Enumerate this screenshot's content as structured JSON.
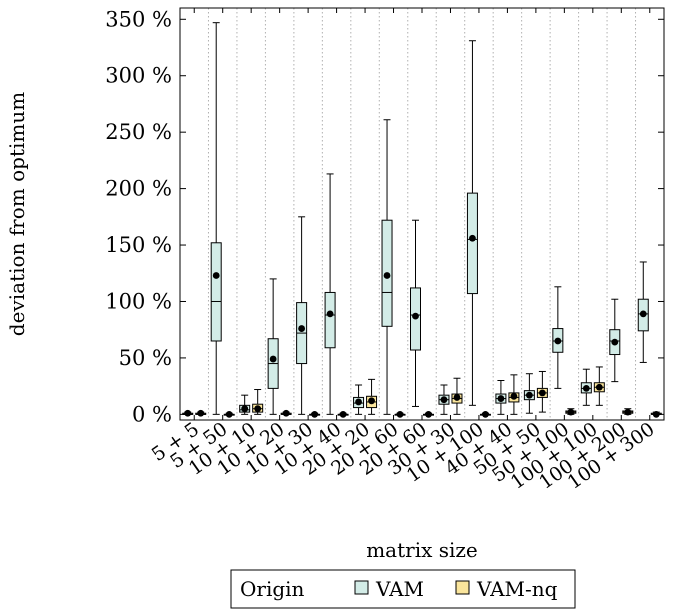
{
  "chart_data": {
    "type": "box",
    "title": "",
    "xlabel": "matrix size",
    "ylabel": "deviation from optimum",
    "ylim": [
      -5,
      360
    ],
    "yticks": [
      0,
      50,
      100,
      150,
      200,
      250,
      300,
      350
    ],
    "ytick_labels": [
      "0 %",
      "50 %",
      "100 %",
      "150 %",
      "200 %",
      "250 %",
      "300 %",
      "350 %"
    ],
    "grid": "vertical dotted between categories",
    "categories": [
      "5 + 5",
      "5 + 50",
      "10 + 10",
      "10 + 20",
      "10 + 30",
      "10 + 40",
      "20 + 20",
      "20 + 60",
      "20 + 60",
      "30 + 30",
      "10 + 100",
      "40 + 40",
      "50 + 50",
      "50 + 100",
      "100 + 100",
      "100 + 200",
      "100 + 300"
    ],
    "legend": {
      "title": "Origin",
      "placement": "bottom-center",
      "entries": [
        {
          "name": "VAM",
          "color": "#d3ece7"
        },
        {
          "name": "VAM-nq",
          "color": "#fae59c"
        }
      ]
    },
    "series": [
      {
        "name": "VAM",
        "color": "#d3ece7",
        "boxes": [
          {
            "min": 0,
            "q1": 0,
            "median": 0,
            "q3": 1,
            "max": 2,
            "mean": 1
          },
          {
            "min": 0,
            "q1": 65,
            "median": 100,
            "q3": 152,
            "max": 347,
            "mean": 123
          },
          {
            "min": 0,
            "q1": 2,
            "median": 4,
            "q3": 8,
            "max": 17,
            "mean": 5
          },
          {
            "min": 0,
            "q1": 23,
            "median": 45,
            "q3": 67,
            "max": 120,
            "mean": 49
          },
          {
            "min": 0,
            "q1": 45,
            "median": 72,
            "q3": 99,
            "max": 175,
            "mean": 76
          },
          {
            "min": 0,
            "q1": 59,
            "median": 88,
            "q3": 108,
            "max": 213,
            "mean": 89
          },
          {
            "min": 0,
            "q1": 6,
            "median": 10,
            "q3": 15,
            "max": 26,
            "mean": 11
          },
          {
            "min": 0,
            "q1": 78,
            "median": 108,
            "q3": 172,
            "max": 261,
            "mean": 123
          },
          {
            "min": 7,
            "q1": 57,
            "median": 88,
            "q3": 112,
            "max": 172,
            "mean": 87
          },
          {
            "min": 0,
            "q1": 9,
            "median": 13,
            "q3": 17,
            "max": 26,
            "mean": 13
          },
          {
            "min": 8,
            "q1": 107,
            "median": 155,
            "q3": 196,
            "max": 331,
            "mean": 156
          },
          {
            "min": 0,
            "q1": 10,
            "median": 14,
            "q3": 18,
            "max": 30,
            "mean": 14
          },
          {
            "min": 1,
            "q1": 13,
            "median": 17,
            "q3": 21,
            "max": 36,
            "mean": 17
          },
          {
            "min": 23,
            "q1": 55,
            "median": 65,
            "q3": 76,
            "max": 113,
            "mean": 65
          },
          {
            "min": 8,
            "q1": 19,
            "median": 23,
            "q3": 28,
            "max": 40,
            "mean": 23
          },
          {
            "min": 29,
            "q1": 53,
            "median": 65,
            "q3": 75,
            "max": 102,
            "mean": 64
          },
          {
            "min": 46,
            "q1": 74,
            "median": 89,
            "q3": 102,
            "max": 135,
            "mean": 89
          }
        ]
      },
      {
        "name": "VAM-nq",
        "color": "#fae59c",
        "boxes": [
          {
            "min": 0,
            "q1": 0,
            "median": 0,
            "q3": 1,
            "max": 2,
            "mean": 1
          },
          {
            "min": 0,
            "q1": 0,
            "median": 0,
            "q3": 0,
            "max": 1,
            "mean": 0
          },
          {
            "min": 0,
            "q1": 2,
            "median": 5,
            "q3": 9,
            "max": 22,
            "mean": 5
          },
          {
            "min": 0,
            "q1": 0,
            "median": 0,
            "q3": 1,
            "max": 2,
            "mean": 1
          },
          {
            "min": 0,
            "q1": 0,
            "median": 0,
            "q3": 0,
            "max": 1,
            "mean": 0
          },
          {
            "min": 0,
            "q1": 0,
            "median": 0,
            "q3": 0,
            "max": 1,
            "mean": 0
          },
          {
            "min": 0,
            "q1": 6,
            "median": 11,
            "q3": 16,
            "max": 31,
            "mean": 12
          },
          {
            "min": 0,
            "q1": 0,
            "median": 0,
            "q3": 0,
            "max": 1,
            "mean": 0
          },
          {
            "min": 0,
            "q1": 0,
            "median": 0,
            "q3": 0,
            "max": 1,
            "mean": 0
          },
          {
            "min": 0,
            "q1": 10,
            "median": 14,
            "q3": 18,
            "max": 32,
            "mean": 15
          },
          {
            "min": 0,
            "q1": 0,
            "median": 0,
            "q3": 0,
            "max": 1,
            "mean": 0
          },
          {
            "min": 0,
            "q1": 11,
            "median": 15,
            "q3": 19,
            "max": 35,
            "mean": 16
          },
          {
            "min": 2,
            "q1": 15,
            "median": 19,
            "q3": 23,
            "max": 38,
            "mean": 19
          },
          {
            "min": 0,
            "q1": 1,
            "median": 2,
            "q3": 3,
            "max": 5,
            "mean": 2
          },
          {
            "min": 8,
            "q1": 20,
            "median": 24,
            "q3": 28,
            "max": 42,
            "mean": 24
          },
          {
            "min": 0,
            "q1": 1,
            "median": 2,
            "q3": 3,
            "max": 5,
            "mean": 2
          },
          {
            "min": 0,
            "q1": 0,
            "median": 0,
            "q3": 1,
            "max": 2,
            "mean": 0
          }
        ]
      }
    ]
  }
}
